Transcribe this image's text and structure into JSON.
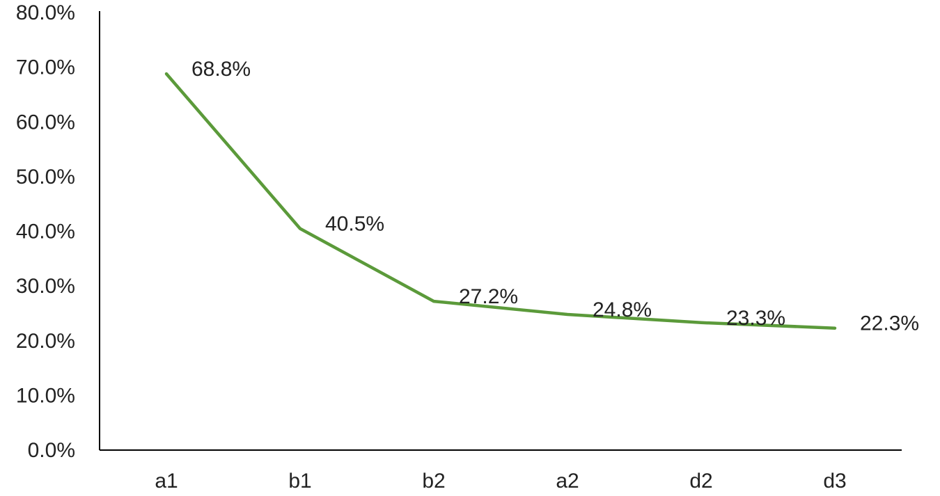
{
  "chart_data": {
    "type": "line",
    "title": "",
    "xlabel": "",
    "ylabel": "",
    "categories": [
      "a1",
      "b1",
      "b2",
      "a2",
      "d2",
      "d3"
    ],
    "series": [
      {
        "values": [
          68.8,
          40.5,
          27.2,
          24.8,
          23.3,
          22.3
        ],
        "data_labels": [
          "68.8%",
          "40.5%",
          "27.2%",
          "24.8%",
          "23.3%",
          "22.3%"
        ],
        "color": "#5b9a3a"
      }
    ],
    "ylim": [
      0,
      80
    ],
    "y_ticks": [
      0,
      10,
      20,
      30,
      40,
      50,
      60,
      70,
      80
    ],
    "y_tick_labels": [
      "0.0%",
      "10.0%",
      "20.0%",
      "30.0%",
      "40.0%",
      "50.0%",
      "60.0%",
      "70.0%",
      "80.0%"
    ],
    "grid": false,
    "legend": "none",
    "axis_color": "#000000"
  }
}
